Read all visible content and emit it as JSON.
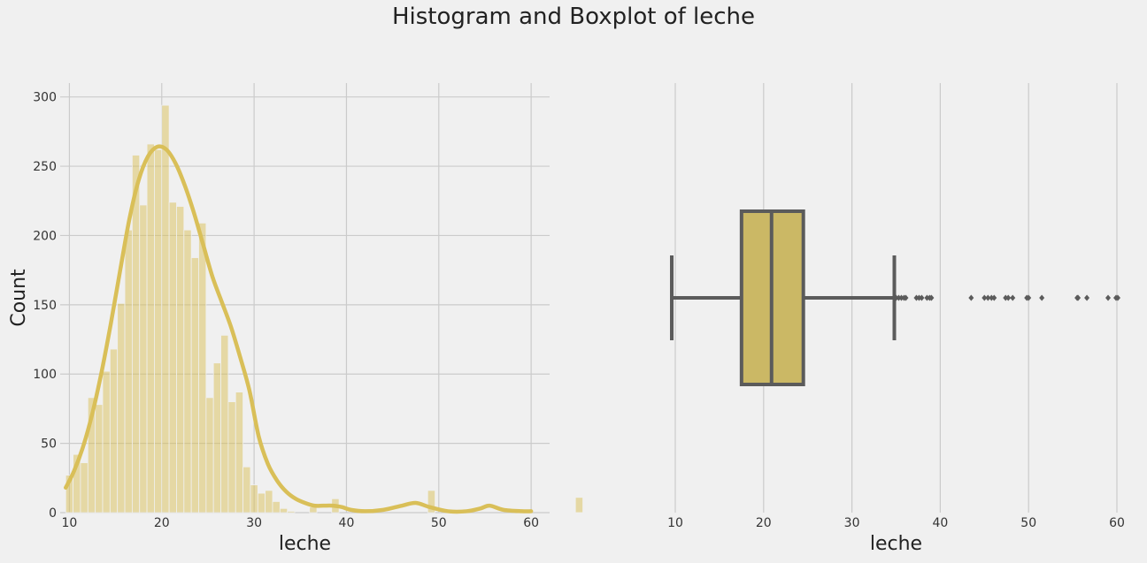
{
  "title": "Histogram and Boxplot of leche",
  "colors": {
    "background": "#f0f0f0",
    "grid": "#cbcbcb",
    "hist": "#d9bf58",
    "kde": "#d9bf58",
    "box_fill": "#cbb865",
    "box_line": "#5b5b5b"
  },
  "chart_data": [
    {
      "type": "bar",
      "subtype": "histogram",
      "xlabel": "leche",
      "ylabel": "Count",
      "xlim": [
        9,
        62
      ],
      "ylim": [
        0,
        310
      ],
      "xticks": [
        10,
        20,
        30,
        40,
        50,
        60
      ],
      "yticks": [
        0,
        50,
        100,
        150,
        200,
        250,
        300
      ],
      "grid": true,
      "bin_start": 9.6,
      "bin_width": 0.8,
      "counts": [
        27,
        42,
        36,
        83,
        78,
        102,
        118,
        151,
        204,
        258,
        222,
        266,
        262,
        294,
        224,
        221,
        204,
        184,
        209,
        83,
        108,
        128,
        80,
        87,
        33,
        20,
        14,
        16,
        8,
        3,
        1,
        0,
        0,
        4,
        0,
        0,
        10,
        0,
        0,
        0,
        0,
        0,
        0,
        0,
        0,
        0,
        0,
        0,
        0,
        16,
        0,
        0,
        0,
        0,
        0,
        0,
        0,
        0,
        0,
        0,
        0,
        0,
        0,
        0,
        0,
        0,
        0,
        0,
        0,
        11,
        0,
        0,
        0,
        0,
        0,
        0
      ],
      "kde": {
        "x": [
          9.6,
          10.5,
          11.5,
          12.5,
          13.5,
          14.5,
          15.5,
          16.5,
          17.5,
          18.5,
          19.5,
          20.5,
          21.5,
          22.5,
          23.5,
          24.5,
          25.5,
          26.5,
          27.5,
          28.5,
          29.5,
          30.5,
          31.5,
          32.5,
          33.5,
          34.5,
          35.5,
          36.5,
          37.5,
          38.5,
          39.5,
          40.5,
          42,
          44,
          46,
          47.5,
          49,
          51,
          53,
          54.5,
          55.5,
          57,
          59,
          60
        ],
        "y": [
          18,
          30,
          48,
          72,
          102,
          137,
          175,
          212,
          240,
          257,
          264,
          262,
          252,
          236,
          216,
          193,
          170,
          152,
          134,
          112,
          88,
          55,
          35,
          23,
          15,
          10,
          7,
          5,
          5,
          5,
          4,
          2,
          1,
          2,
          5,
          7,
          4,
          1,
          1,
          3,
          5,
          2,
          1,
          1
        ]
      }
    },
    {
      "type": "box",
      "xlabel": "leche",
      "xlim": [
        9,
        61
      ],
      "xticks": [
        10,
        20,
        30,
        40,
        50,
        60
      ],
      "grid": true,
      "whisker_low": 9.6,
      "q1": 17.5,
      "median": 20.9,
      "q3": 24.5,
      "whisker_high": 34.8,
      "outliers": [
        35.0,
        35.3,
        35.6,
        35.9,
        36.1,
        37.3,
        37.6,
        37.9,
        38.5,
        38.8,
        39.0,
        43.5,
        45.0,
        45.4,
        45.8,
        46.1,
        47.4,
        47.7,
        48.2,
        49.8,
        50.0,
        51.5,
        55.5,
        55.6,
        56.6,
        59.0,
        59.9,
        60.1
      ]
    }
  ]
}
